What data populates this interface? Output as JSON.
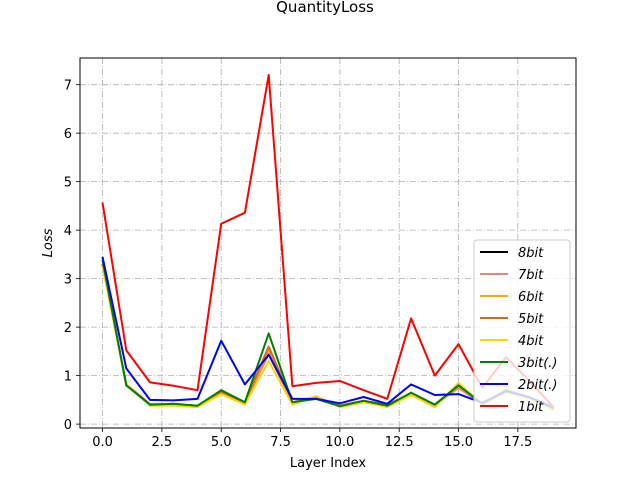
{
  "chart_data": {
    "type": "line",
    "title": "QuantityLoss",
    "xlabel": "Layer Index",
    "ylabel": "Loss",
    "xlim": [
      -0.95,
      19.95
    ],
    "ylim": [
      -0.08,
      7.55
    ],
    "xticks": [
      0.0,
      2.5,
      5.0,
      7.5,
      10.0,
      12.5,
      15.0,
      17.5
    ],
    "xtick_labels": [
      "0.0",
      "2.5",
      "5.0",
      "7.5",
      "10.0",
      "12.5",
      "15.0",
      "17.5"
    ],
    "yticks": [
      0,
      1,
      2,
      3,
      4,
      5,
      6,
      7
    ],
    "ytick_labels": [
      "0",
      "1",
      "2",
      "3",
      "4",
      "5",
      "6",
      "7"
    ],
    "grid": true,
    "legend_position": "lower-right",
    "x": [
      0,
      1,
      2,
      3,
      4,
      5,
      6,
      7,
      8,
      9,
      10,
      11,
      12,
      13,
      14,
      15,
      16,
      17,
      18,
      19
    ],
    "series": [
      {
        "name": "8bit",
        "color": "#000000",
        "values": [
          3.3,
          0.8,
          0.4,
          0.4,
          0.38,
          0.65,
          0.45,
          1.45,
          0.45,
          0.55,
          0.38,
          0.48,
          0.4,
          0.62,
          0.4,
          0.75,
          0.42,
          0.68,
          0.55,
          0.3
        ]
      },
      {
        "name": "7bit",
        "color": "#f08080",
        "values": [
          3.3,
          0.8,
          0.4,
          0.4,
          0.38,
          0.65,
          0.45,
          1.45,
          0.45,
          0.55,
          0.38,
          0.48,
          0.4,
          0.62,
          0.4,
          0.75,
          0.42,
          0.68,
          0.55,
          0.3
        ]
      },
      {
        "name": "6bit",
        "color": "#ffa500",
        "values": [
          3.3,
          0.82,
          0.41,
          0.41,
          0.38,
          0.66,
          0.45,
          1.55,
          0.45,
          0.56,
          0.38,
          0.48,
          0.4,
          0.63,
          0.4,
          0.78,
          0.42,
          0.68,
          0.55,
          0.3
        ]
      },
      {
        "name": "5bit",
        "color": "#d2691e",
        "values": [
          3.3,
          0.82,
          0.41,
          0.41,
          0.38,
          0.66,
          0.45,
          1.6,
          0.45,
          0.56,
          0.38,
          0.48,
          0.4,
          0.63,
          0.4,
          0.8,
          0.42,
          0.68,
          0.55,
          0.3
        ]
      },
      {
        "name": "4bit",
        "color": "#ffd700",
        "values": [
          3.25,
          0.82,
          0.38,
          0.38,
          0.35,
          0.62,
          0.4,
          1.3,
          0.4,
          0.58,
          0.35,
          0.45,
          0.35,
          0.6,
          0.35,
          0.85,
          0.4,
          0.65,
          0.52,
          0.28
        ]
      },
      {
        "name": "3bit(.)",
        "color": "#008000",
        "values": [
          3.38,
          0.8,
          0.4,
          0.42,
          0.38,
          0.7,
          0.45,
          1.87,
          0.45,
          0.52,
          0.37,
          0.48,
          0.38,
          0.65,
          0.4,
          0.8,
          0.42,
          0.7,
          0.55,
          0.32
        ]
      },
      {
        "name": "2bit(.)",
        "color": "#0000ff",
        "values": [
          3.45,
          1.15,
          0.5,
          0.49,
          0.52,
          1.72,
          0.82,
          1.43,
          0.52,
          0.52,
          0.43,
          0.56,
          0.42,
          0.82,
          0.6,
          0.62,
          0.44,
          0.68,
          0.55,
          0.35
        ]
      },
      {
        "name": "1bit",
        "color": "#ff0000",
        "values": [
          4.57,
          1.52,
          0.86,
          0.79,
          0.7,
          4.13,
          4.36,
          7.2,
          0.78,
          0.85,
          0.89,
          0.7,
          0.52,
          2.18,
          1.0,
          1.65,
          0.75,
          1.38,
          0.88,
          0.35
        ]
      }
    ]
  }
}
